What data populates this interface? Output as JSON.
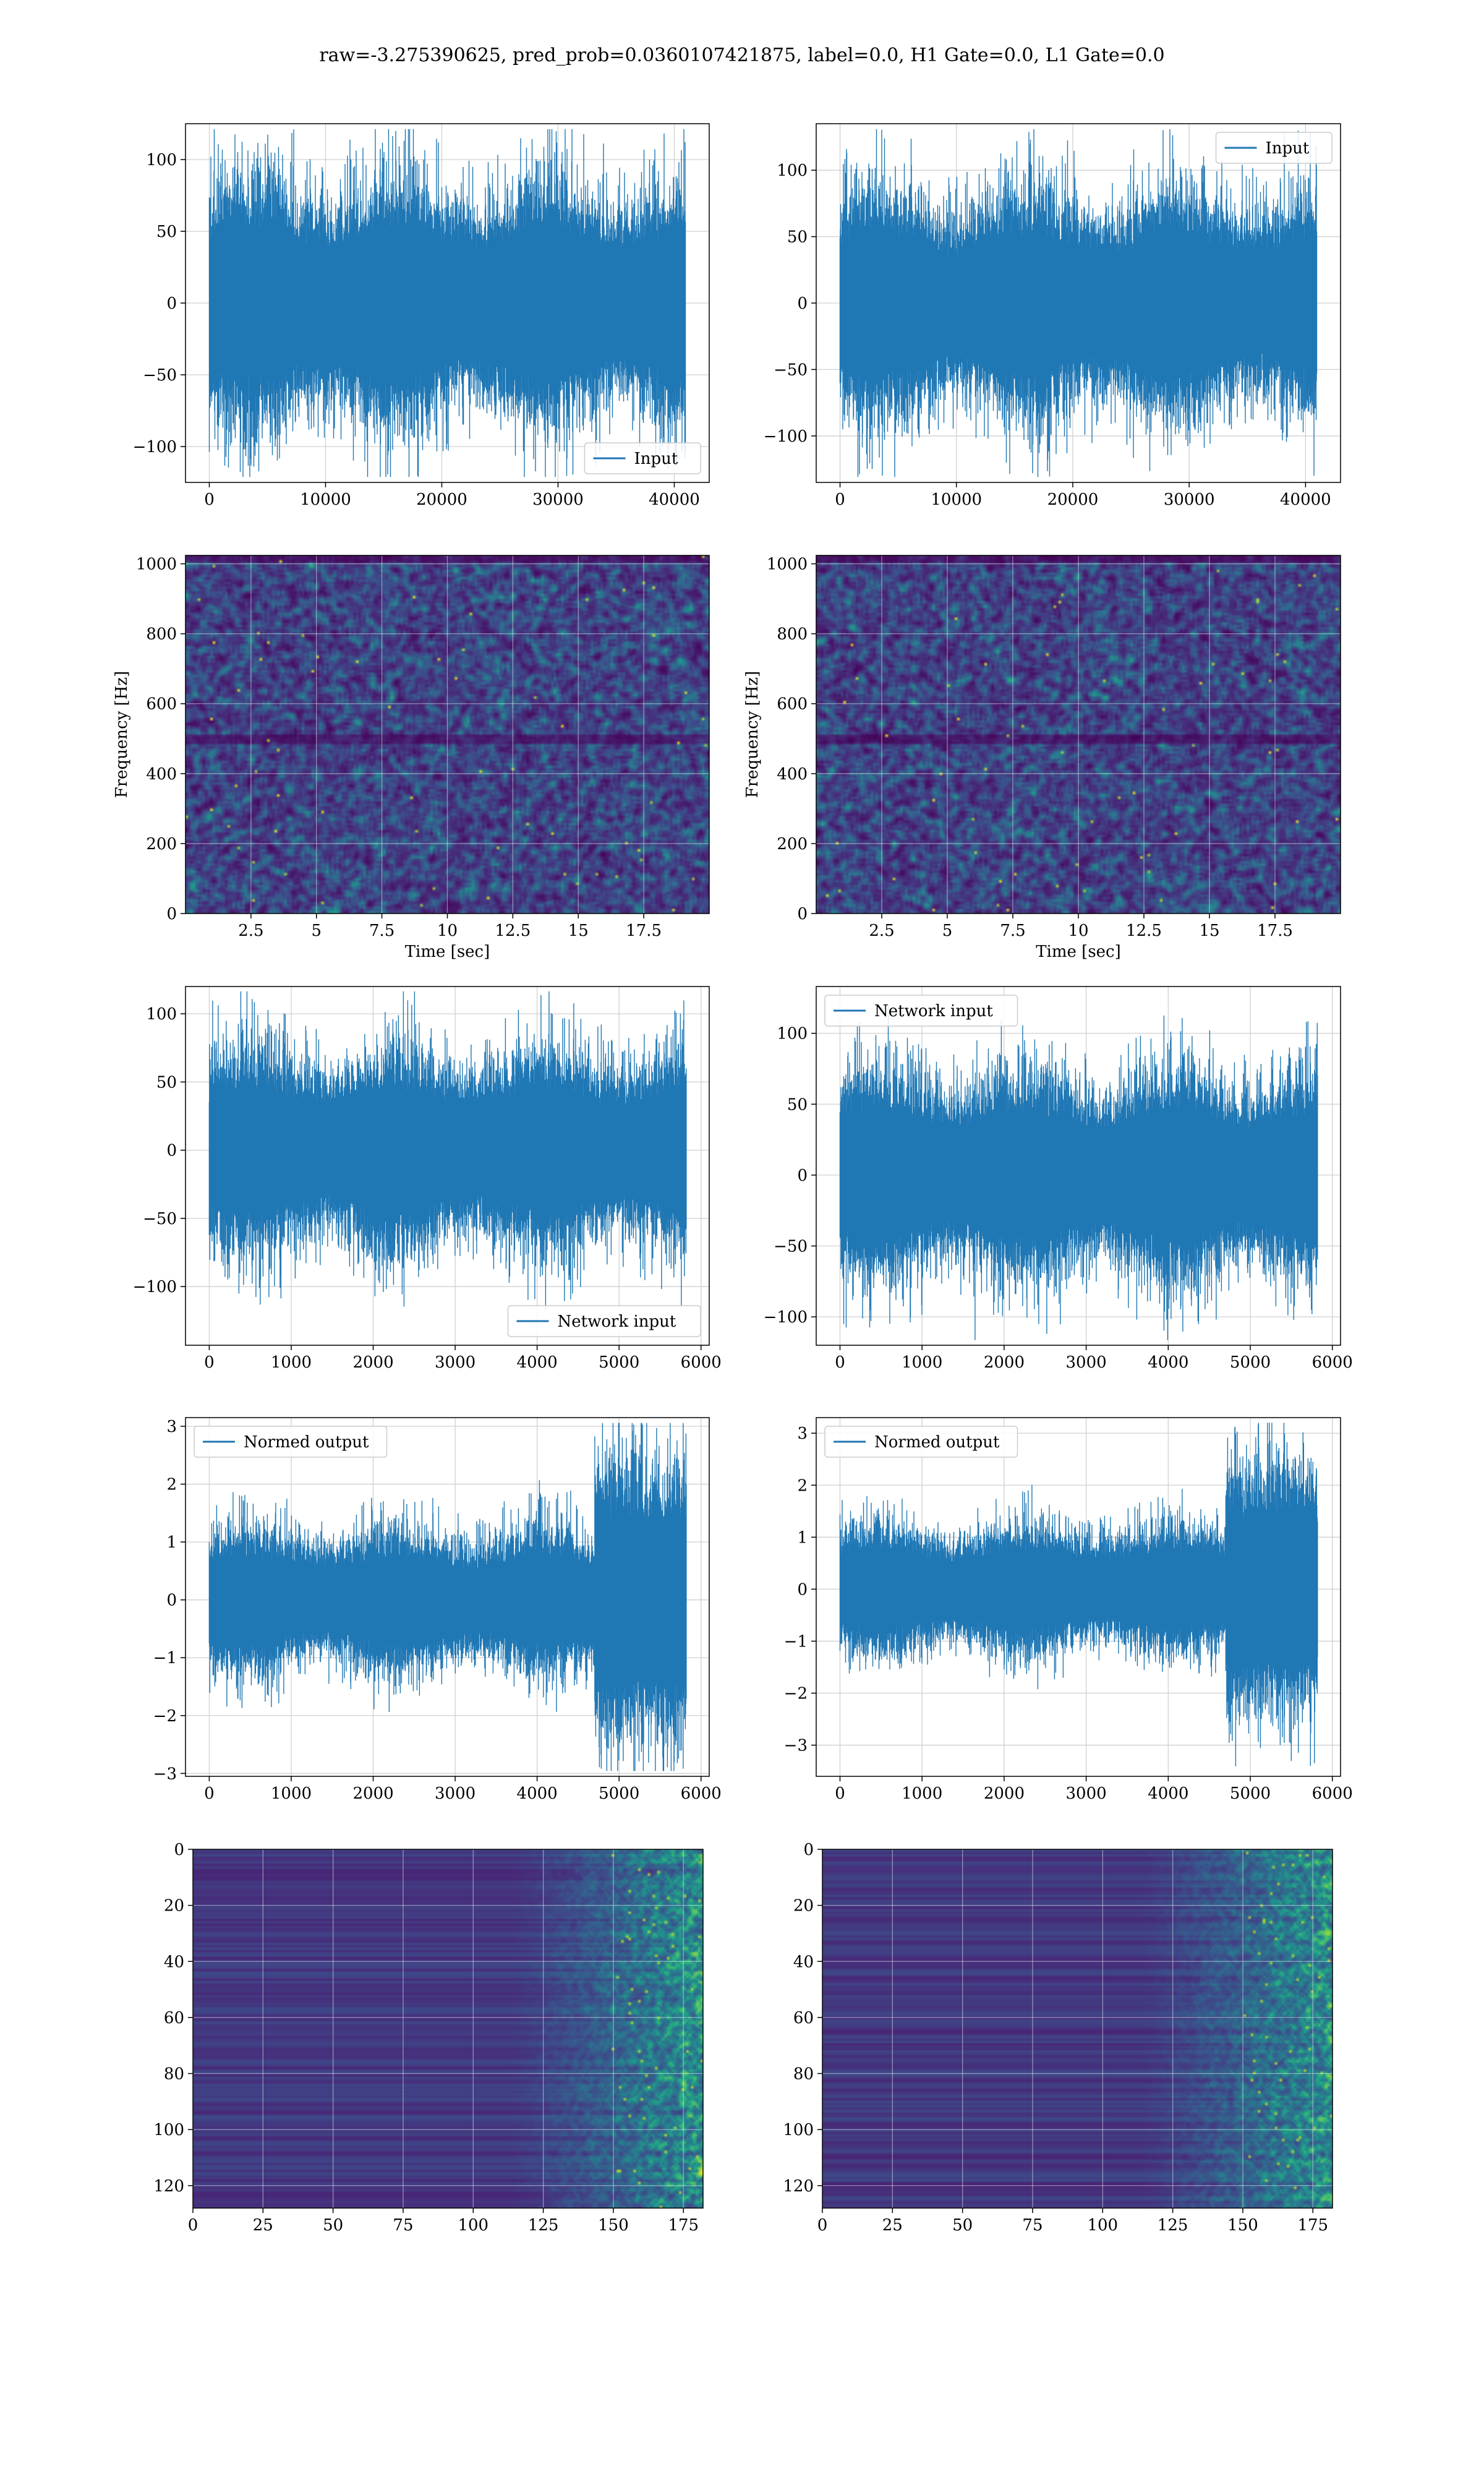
{
  "suptitle": "raw=-3.275390625, pred_prob=0.0360107421875, label=0.0, H1 Gate=0.0, L1 Gate=0.0",
  "colors": {
    "line": "#1f77b4",
    "grid": "#d0d0d0",
    "spine": "#000000"
  },
  "chart_data": [
    {
      "type": "line",
      "panel": "input-h1",
      "xlim": [
        -2048,
        43008
      ],
      "ylim": [
        -125,
        125
      ],
      "xticks": [
        0,
        10000,
        20000,
        30000,
        40000
      ],
      "yticks": [
        -100,
        -50,
        0,
        50,
        100
      ],
      "x_range": [
        0,
        40960
      ],
      "amplitude": 70,
      "legend": "lower-right",
      "series": [
        {
          "name": "Input"
        }
      ]
    },
    {
      "type": "line",
      "panel": "input-l1",
      "xlim": [
        -2048,
        43008
      ],
      "ylim": [
        -135,
        135
      ],
      "xticks": [
        0,
        10000,
        20000,
        30000,
        40000
      ],
      "yticks": [
        -100,
        -50,
        0,
        50,
        100
      ],
      "x_range": [
        0,
        40960
      ],
      "amplitude": 70,
      "legend": "upper-right",
      "series": [
        {
          "name": "Input"
        }
      ]
    },
    {
      "type": "heatmap",
      "panel": "spec-h1",
      "xlim": [
        0,
        20
      ],
      "ylim": [
        0,
        1024
      ],
      "xticks": [
        2.5,
        5.0,
        7.5,
        10.0,
        12.5,
        15.0,
        17.5
      ],
      "yticks": [
        0,
        200,
        400,
        600,
        800,
        1000
      ],
      "xlabel": "Time [sec]",
      "ylabel": "Frequency [Hz]"
    },
    {
      "type": "heatmap",
      "panel": "spec-l1",
      "xlim": [
        0,
        20
      ],
      "ylim": [
        0,
        1024
      ],
      "xticks": [
        2.5,
        5.0,
        7.5,
        10.0,
        12.5,
        15.0,
        17.5
      ],
      "yticks": [
        0,
        200,
        400,
        600,
        800,
        1000
      ],
      "xlabel": "Time [sec]",
      "ylabel": "Frequency [Hz]"
    },
    {
      "type": "line",
      "panel": "net-h1",
      "xlim": [
        -290,
        6100
      ],
      "ylim": [
        -143,
        120
      ],
      "xticks": [
        0,
        1000,
        2000,
        3000,
        4000,
        5000,
        6000
      ],
      "yticks": [
        -100,
        -50,
        0,
        50,
        100
      ],
      "x_range": [
        0,
        5820
      ],
      "amplitude": 60,
      "legend": "lower-right",
      "series": [
        {
          "name": "Network input"
        }
      ]
    },
    {
      "type": "line",
      "panel": "net-l1",
      "xlim": [
        -290,
        6100
      ],
      "ylim": [
        -120,
        133
      ],
      "xticks": [
        0,
        1000,
        2000,
        3000,
        4000,
        5000,
        6000
      ],
      "yticks": [
        -100,
        -50,
        0,
        50,
        100
      ],
      "x_range": [
        0,
        5820
      ],
      "amplitude": 60,
      "legend": "upper-left",
      "series": [
        {
          "name": "Network input"
        }
      ]
    },
    {
      "type": "line",
      "panel": "norm-h1",
      "xlim": [
        -290,
        6100
      ],
      "ylim": [
        -3.05,
        3.15
      ],
      "xticks": [
        0,
        1000,
        2000,
        3000,
        4000,
        5000,
        6000
      ],
      "yticks": [
        -3,
        -2,
        -1,
        0,
        1,
        2,
        3
      ],
      "x_range": [
        0,
        5820
      ],
      "amplitude": 1,
      "burst_start": 4700,
      "burst_amplitude": 2,
      "legend": "upper-left",
      "series": [
        {
          "name": "Normed output"
        }
      ]
    },
    {
      "type": "line",
      "panel": "norm-l1",
      "xlim": [
        -290,
        6100
      ],
      "ylim": [
        -3.6,
        3.3
      ],
      "xticks": [
        0,
        1000,
        2000,
        3000,
        4000,
        5000,
        6000
      ],
      "yticks": [
        -3,
        -2,
        -1,
        0,
        1,
        2,
        3
      ],
      "x_range": [
        0,
        5820
      ],
      "amplitude": 1,
      "burst_start": 4700,
      "burst_amplitude": 2,
      "legend": "upper-left",
      "series": [
        {
          "name": "Normed output"
        }
      ]
    },
    {
      "type": "heatmap",
      "panel": "feat-h1",
      "xlim": [
        0,
        182
      ],
      "ylim": [
        128,
        0
      ],
      "xticks": [
        0,
        25,
        50,
        75,
        100,
        125,
        150,
        175
      ],
      "yticks": [
        0,
        20,
        40,
        60,
        80,
        100,
        120
      ]
    },
    {
      "type": "heatmap",
      "panel": "feat-l1",
      "xlim": [
        0,
        182
      ],
      "ylim": [
        128,
        0
      ],
      "xticks": [
        0,
        25,
        50,
        75,
        100,
        125,
        150,
        175
      ],
      "yticks": [
        0,
        20,
        40,
        60,
        80,
        100,
        120
      ]
    }
  ]
}
